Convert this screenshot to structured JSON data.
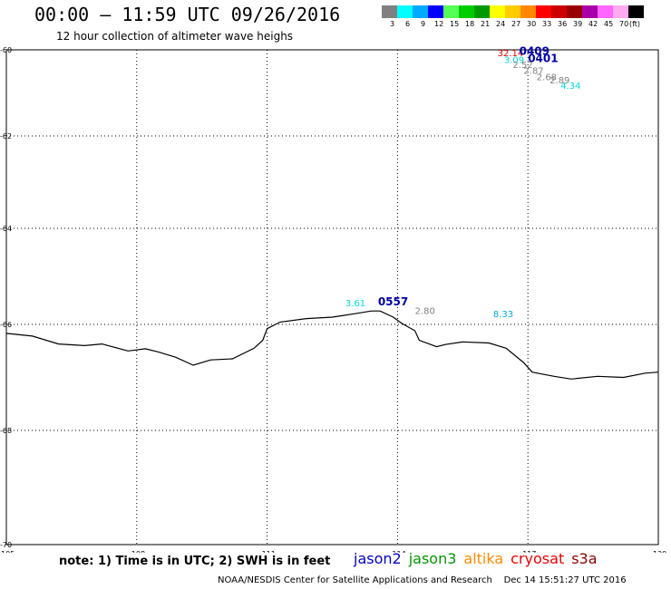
{
  "header": {
    "title": "00:00 – 11:59 UTC 09/26/2016",
    "subtitle": "12 hour collection of altimeter wave heighs"
  },
  "legend": {
    "swatches": [
      {
        "label": "3",
        "color": "#808080"
      },
      {
        "label": "6",
        "color": "#00ffff"
      },
      {
        "label": "9",
        "color": "#00aaff"
      },
      {
        "label": "12",
        "color": "#0000ff"
      },
      {
        "label": "15",
        "color": "#55ff55"
      },
      {
        "label": "18",
        "color": "#00cc00"
      },
      {
        "label": "21",
        "color": "#009900"
      },
      {
        "label": "24",
        "color": "#ffff00"
      },
      {
        "label": "27",
        "color": "#ffcc00"
      },
      {
        "label": "30",
        "color": "#ff8800"
      },
      {
        "label": "33",
        "color": "#ff0000"
      },
      {
        "label": "36",
        "color": "#cc0000"
      },
      {
        "label": "39",
        "color": "#990000"
      },
      {
        "label": "42",
        "color": "#aa00aa"
      },
      {
        "label": "45",
        "color": "#ff66ff"
      },
      {
        "label": "70",
        "color": "#ffaaee"
      },
      {
        "label": "",
        "color": "#000000"
      }
    ],
    "unit": "(ft)"
  },
  "map": {
    "x_ticks": [
      "105",
      "108",
      "111",
      "114",
      "117",
      "120"
    ],
    "y_ticks": [
      "-60",
      "-62",
      "-64",
      "-66",
      "-68",
      "-70"
    ],
    "x_range": [
      105,
      120
    ],
    "y_range": [
      -60,
      -70
    ],
    "coastline": [
      [
        105,
        -66.17
      ],
      [
        105.6,
        -66.22
      ],
      [
        106.2,
        -66.37
      ],
      [
        106.8,
        -66.4
      ],
      [
        107.2,
        -66.37
      ],
      [
        107.8,
        -66.5
      ],
      [
        108.2,
        -66.46
      ],
      [
        108.5,
        -66.52
      ],
      [
        108.9,
        -66.62
      ],
      [
        109.3,
        -66.77
      ],
      [
        109.7,
        -66.67
      ],
      [
        110.2,
        -66.65
      ],
      [
        110.7,
        -66.45
      ],
      [
        110.9,
        -66.3
      ],
      [
        111.0,
        -66.08
      ],
      [
        111.3,
        -65.95
      ],
      [
        111.9,
        -65.88
      ],
      [
        112.5,
        -65.85
      ],
      [
        113.0,
        -65.78
      ],
      [
        113.4,
        -65.72
      ],
      [
        113.6,
        -65.72
      ],
      [
        113.9,
        -65.85
      ],
      [
        114.1,
        -65.98
      ],
      [
        114.4,
        -66.12
      ],
      [
        114.5,
        -66.3
      ],
      [
        114.9,
        -66.42
      ],
      [
        115.1,
        -66.38
      ],
      [
        115.5,
        -66.33
      ],
      [
        116.1,
        -66.35
      ],
      [
        116.5,
        -66.45
      ],
      [
        116.9,
        -66.72
      ],
      [
        117.1,
        -66.9
      ],
      [
        117.6,
        -66.98
      ],
      [
        118.0,
        -67.03
      ],
      [
        118.6,
        -66.98
      ],
      [
        119.2,
        -67.0
      ],
      [
        119.7,
        -66.92
      ],
      [
        120,
        -66.9
      ]
    ],
    "labels": [
      {
        "text": "32.14",
        "lon": 116.3,
        "lat": -60.15,
        "color": "#ee0000",
        "size": 10
      },
      {
        "text": "0409",
        "lon": 116.8,
        "lat": -60.12,
        "color": "#0000aa",
        "size": 12
      },
      {
        "text": "3.09",
        "lon": 116.45,
        "lat": -60.3,
        "color": "#00dddd",
        "size": 10
      },
      {
        "text": "0401",
        "lon": 117.0,
        "lat": -60.28,
        "color": "#0000aa",
        "size": 12
      },
      {
        "text": "2.52",
        "lon": 116.65,
        "lat": -60.42,
        "color": "#808080",
        "size": 10
      },
      {
        "text": "2.87",
        "lon": 116.9,
        "lat": -60.56,
        "color": "#808080",
        "size": 10
      },
      {
        "text": "2.68",
        "lon": 117.2,
        "lat": -60.7,
        "color": "#808080",
        "size": 10
      },
      {
        "text": "2.89",
        "lon": 117.5,
        "lat": -60.78,
        "color": "#808080",
        "size": 10
      },
      {
        "text": "4.34",
        "lon": 117.75,
        "lat": -60.9,
        "color": "#00dddd",
        "size": 10
      },
      {
        "text": "3.61",
        "lon": 112.8,
        "lat": -65.62,
        "color": "#00dddd",
        "size": 10
      },
      {
        "text": "0557",
        "lon": 113.55,
        "lat": -65.6,
        "color": "#0000aa",
        "size": 12
      },
      {
        "text": "2.80",
        "lon": 114.4,
        "lat": -65.78,
        "color": "#808080",
        "size": 10
      },
      {
        "text": "8.33",
        "lon": 116.2,
        "lat": -65.85,
        "color": "#00aadd",
        "size": 10
      }
    ]
  },
  "footer": {
    "note": "note: 1) Time is in UTC; 2) SWH is in feet",
    "satellites": [
      {
        "name": "jason2",
        "color": "#0000cc"
      },
      {
        "name": "jason3",
        "color": "#009900"
      },
      {
        "name": "altika",
        "color": "#ff8800"
      },
      {
        "name": "cryosat",
        "color": "#ee0000"
      },
      {
        "name": "s3a",
        "color": "#880000"
      }
    ],
    "credit": "NOAA/NESDIS Center for Satellite Applications and Research",
    "timestamp": "Dec 14 15:51:27 UTC 2016"
  }
}
